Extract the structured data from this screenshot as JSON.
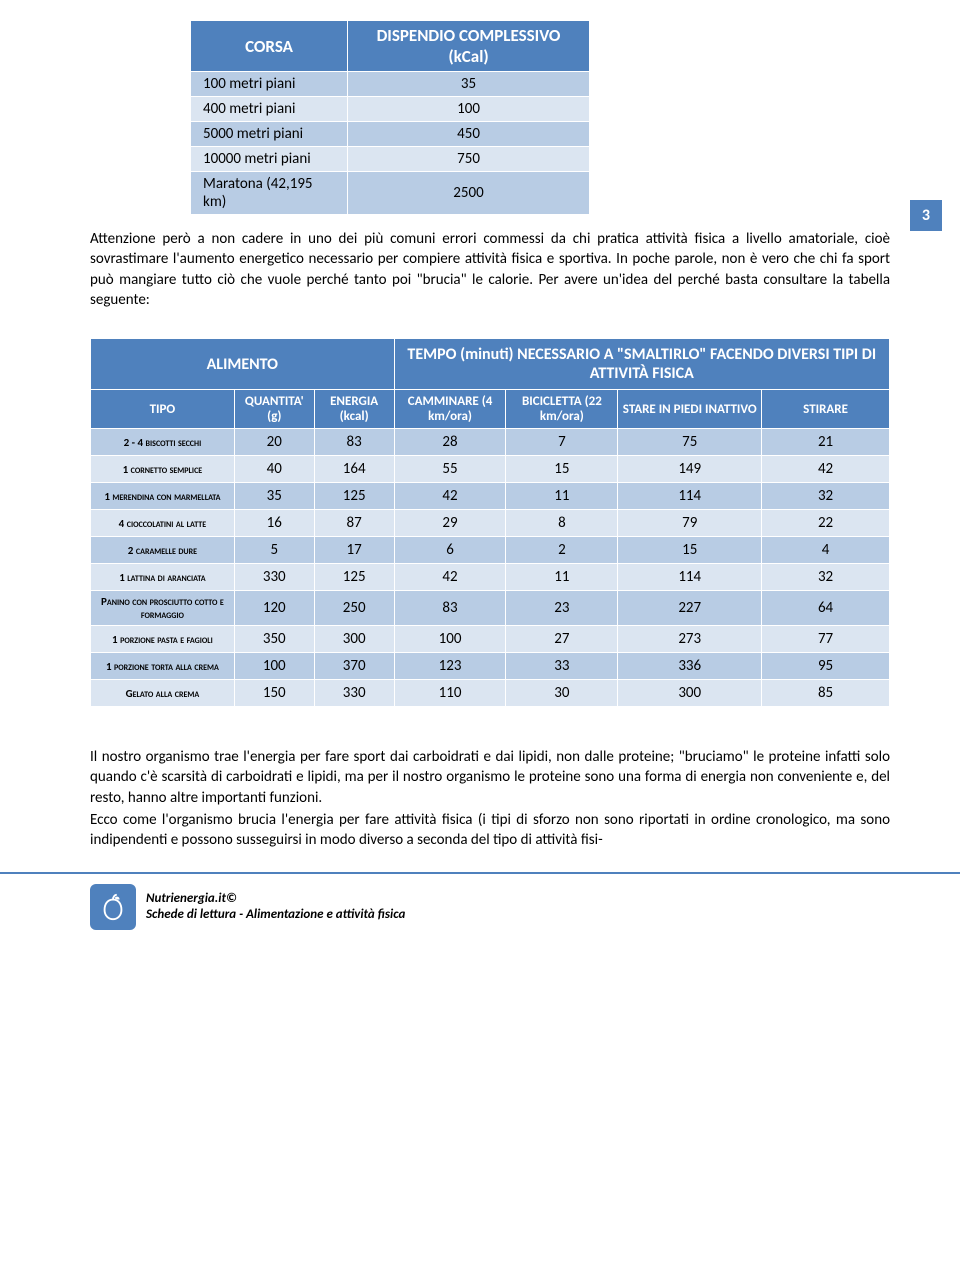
{
  "pageNumber": "3",
  "table1": {
    "col1_header": "CORSA",
    "col2_header": "DISPENDIO COMPLESSIVO (kCal)",
    "header_bg": "#4f81bd",
    "header_color": "#ffffff",
    "row_odd_bg": "#b8cce4",
    "row_even_bg": "#dbe5f1",
    "rows": [
      {
        "label": "100 metri piani",
        "value": "35"
      },
      {
        "label": "400 metri piani",
        "value": "100"
      },
      {
        "label": "5000 metri piani",
        "value": "450"
      },
      {
        "label": "10000 metri piani",
        "value": "750"
      },
      {
        "label": "Maratona (42,195 km)",
        "value": "2500"
      }
    ]
  },
  "paragraph1": "Attenzione però a non cadere in uno dei più comuni errori commessi da chi pratica attività fisica a livello amatoriale, cioè sovrastimare l'aumento energetico necessario per compiere attività fisica e sportiva. In poche parole, non è vero che chi fa sport può mangiare tutto ciò che vuole perché tanto poi \"brucia\" le calorie. Per avere un'idea del perché basta consultare la tabella seguente:",
  "table2": {
    "alimento_header": "ALIMENTO",
    "tempo_header": "TEMPO (minuti) NECESSARIO A \"SMALTIRLO\" FACENDO DIVERSI TIPI DI ATTIVITÀ FISICA",
    "sub_headers": {
      "tipo": "TIPO",
      "quantita": "QUANTITA' (g)",
      "energia": "ENERGIA (kcal)",
      "camminare": "CAMMINARE (4 km/ora)",
      "bicicletta": "BICICLETTA (22 km/ora)",
      "stare": "STARE IN PIEDI INATTIVO",
      "stirare": "STIRARE"
    },
    "header_bg": "#4f81bd",
    "header_color": "#ffffff",
    "row_odd_bg": "#b8cce4",
    "row_even_bg": "#dbe5f1",
    "columns_widths": [
      "18%",
      "10%",
      "10%",
      "14%",
      "14%",
      "18%",
      "16%"
    ],
    "rows": [
      {
        "tipo": "2 - 4 biscotti secchi",
        "q": "20",
        "e": "83",
        "c1": "28",
        "c2": "7",
        "c3": "75",
        "c4": "21"
      },
      {
        "tipo": "1 cornetto semplice",
        "q": "40",
        "e": "164",
        "c1": "55",
        "c2": "15",
        "c3": "149",
        "c4": "42"
      },
      {
        "tipo": "1 merendina con marmellata",
        "q": "35",
        "e": "125",
        "c1": "42",
        "c2": "11",
        "c3": "114",
        "c4": "32"
      },
      {
        "tipo": "4 cioccolatini al latte",
        "q": "16",
        "e": "87",
        "c1": "29",
        "c2": "8",
        "c3": "79",
        "c4": "22"
      },
      {
        "tipo": "2 caramelle dure",
        "q": "5",
        "e": "17",
        "c1": "6",
        "c2": "2",
        "c3": "15",
        "c4": "4"
      },
      {
        "tipo": "1 lattina di aranciata",
        "q": "330",
        "e": "125",
        "c1": "42",
        "c2": "11",
        "c3": "114",
        "c4": "32"
      },
      {
        "tipo": "Panino con prosciutto cotto e formaggio",
        "q": "120",
        "e": "250",
        "c1": "83",
        "c2": "23",
        "c3": "227",
        "c4": "64"
      },
      {
        "tipo": "1 porzione pasta e fagioli",
        "q": "350",
        "e": "300",
        "c1": "100",
        "c2": "27",
        "c3": "273",
        "c4": "77"
      },
      {
        "tipo": "1 porzione torta alla crema",
        "q": "100",
        "e": "370",
        "c1": "123",
        "c2": "33",
        "c3": "336",
        "c4": "95"
      },
      {
        "tipo": "Gelato alla crema",
        "q": "150",
        "e": "330",
        "c1": "110",
        "c2": "30",
        "c3": "300",
        "c4": "85"
      }
    ]
  },
  "paragraph2": "Il nostro organismo trae l'energia per fare sport dai carboidrati e dai lipidi, non dalle proteine; \"bruciamo\" le proteine infatti solo quando c'è scarsità di carboidrati e lipidi, ma per il nostro organismo le proteine sono una forma di energia non conveniente e, del resto, hanno altre importanti funzioni.",
  "paragraph3": "Ecco come l'organismo brucia l'energia per fare attività fisica (i tipi di sforzo non sono riportati in ordine cronologico, ma sono indipendenti e possono susseguirsi in modo diverso a seconda del tipo di attività fisi-",
  "footer": {
    "line1": "Nutrienergia.it©",
    "line2": "Schede di lettura - Alimentazione e attività fisica",
    "icon_bg": "#4f81bd",
    "border_color": "#4f81bd"
  }
}
